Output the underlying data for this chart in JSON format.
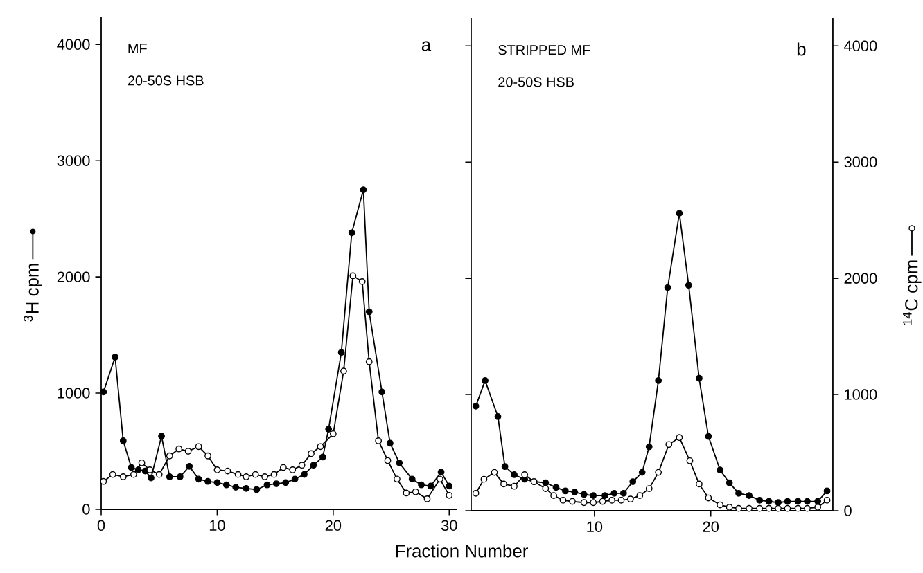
{
  "chart_data": [
    {
      "type": "line",
      "xlabel": "Fraction Number",
      "ylabel": "$^{3}$H cpm",
      "annotations": [
        "MF",
        "20-50S  HSB",
        "a"
      ],
      "xlim": [
        0,
        30.7
      ],
      "ylim": [
        0,
        4240
      ],
      "xticks": [
        0,
        10,
        20,
        30
      ],
      "yticks": [
        0,
        1000,
        2000,
        3000,
        4000
      ],
      "marker": "circle",
      "series": [
        {
          "color": "#000000",
          "x": [
            0.2,
            1.2,
            1.9,
            2.6,
            3.2,
            3.8,
            4.3,
            5.2,
            5.9,
            6.8,
            7.6,
            8.4,
            9.2,
            10,
            10.8,
            11.6,
            12.5,
            13.4,
            14.3,
            15.1,
            15.9,
            16.7,
            17.5,
            18.3,
            19.1,
            19.6,
            20.7,
            21.6,
            22.6,
            23.1,
            24.2,
            24.9,
            25.7,
            26.8,
            27.6,
            28.4,
            29.3,
            30
          ],
          "values": [
            1010,
            1310,
            590,
            360,
            340,
            330,
            270,
            630,
            280,
            280,
            370,
            260,
            240,
            230,
            210,
            190,
            180,
            170,
            210,
            220,
            230,
            260,
            300,
            380,
            450,
            690,
            1350,
            2380,
            2750,
            1700,
            1010,
            570,
            400,
            260,
            210,
            200,
            320,
            200
          ]
        },
        {
          "color": "#000000",
          "x": [
            0.2,
            1,
            1.9,
            2.8,
            3.5,
            4.2,
            5,
            5.9,
            6.7,
            7.5,
            8.4,
            9.2,
            10,
            10.9,
            11.8,
            12.5,
            13.3,
            14.1,
            14.9,
            15.7,
            16.5,
            17.3,
            18.1,
            18.9,
            20,
            20.9,
            21.7,
            22.5,
            23.1,
            23.9,
            24.7,
            25.5,
            26.3,
            27.1,
            28.1,
            29.2,
            30
          ],
          "values": [
            240,
            300,
            280,
            300,
            400,
            340,
            300,
            460,
            520,
            500,
            540,
            460,
            340,
            330,
            300,
            280,
            300,
            280,
            300,
            360,
            340,
            380,
            480,
            540,
            650,
            1190,
            2010,
            1960,
            1270,
            590,
            420,
            260,
            140,
            150,
            90,
            260,
            120
          ]
        }
      ]
    },
    {
      "type": "line",
      "y2label": "$^{14}$C cpm",
      "annotations": [
        "STRIPPED MF",
        "20-50S  HSB",
        "b"
      ],
      "xlim": [
        -0.6,
        30.5
      ],
      "y2lim": [
        0,
        4240
      ],
      "xticks": [
        10,
        20
      ],
      "y2ticks": [
        0,
        1000,
        2000,
        3000,
        4000
      ],
      "marker": "circle",
      "series": [
        {
          "color": "#000000",
          "axis": "y2",
          "x": [
            -0.2,
            0.6,
            1.7,
            2.3,
            3.1,
            4,
            4.8,
            5.8,
            6.7,
            7.5,
            8.3,
            9.1,
            9.9,
            10.9,
            11.7,
            12.5,
            13.3,
            14.1,
            14.7,
            15.5,
            16.3,
            17.3,
            18.1,
            19,
            19.8,
            20.8,
            21.6,
            22.4,
            23.3,
            24.2,
            25,
            25.8,
            26.6,
            27.5,
            28.3,
            29.2,
            30
          ],
          "values": [
            900,
            1120,
            810,
            380,
            310,
            270,
            250,
            240,
            200,
            170,
            160,
            140,
            130,
            130,
            150,
            150,
            250,
            330,
            550,
            1120,
            1920,
            2560,
            1940,
            1140,
            640,
            350,
            240,
            150,
            130,
            90,
            80,
            70,
            80,
            80,
            80,
            80,
            170
          ]
        },
        {
          "color": "#000000",
          "axis": "y2",
          "x": [
            -0.2,
            0.5,
            1.4,
            2.2,
            3.1,
            4,
            4.8,
            5.8,
            6.5,
            7.3,
            8.1,
            9.1,
            9.9,
            10.7,
            11.5,
            12.3,
            13.1,
            13.9,
            14.7,
            15.5,
            16.4,
            17.3,
            18.2,
            19,
            19.8,
            20.8,
            21.6,
            22.4,
            23.3,
            24.2,
            25,
            25.8,
            26.6,
            27.5,
            28.3,
            29.2,
            30
          ],
          "values": [
            150,
            270,
            330,
            230,
            210,
            310,
            250,
            190,
            130,
            90,
            80,
            70,
            70,
            80,
            90,
            90,
            100,
            130,
            190,
            330,
            570,
            630,
            430,
            230,
            110,
            50,
            30,
            20,
            20,
            20,
            20,
            20,
            20,
            20,
            20,
            30,
            90
          ]
        }
      ]
    }
  ]
}
